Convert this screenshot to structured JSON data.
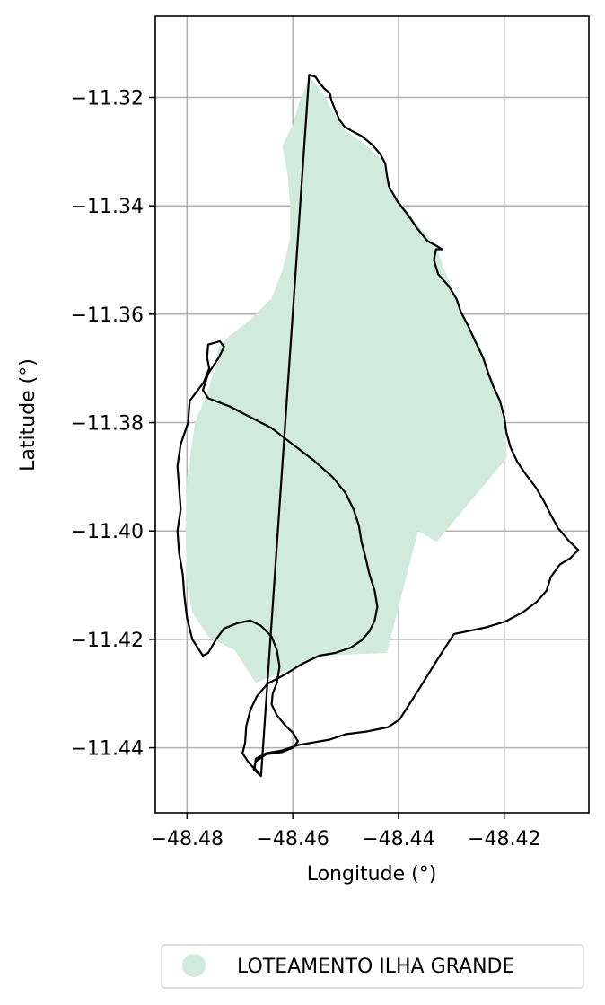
{
  "chart_data": {
    "type": "map",
    "xlabel": "Longitude (°)",
    "ylabel": "Latitude (°)",
    "xlim": [
      -48.486,
      -48.404
    ],
    "ylim": [
      -11.452,
      -11.305
    ],
    "grid": true,
    "x_ticks": [
      -48.48,
      -48.46,
      -48.44,
      -48.42
    ],
    "x_tick_labels": [
      "−48.48",
      "−48.46",
      "−48.44",
      "−48.42"
    ],
    "y_ticks": [
      -11.32,
      -11.34,
      -11.36,
      -11.38,
      -11.4,
      -11.42,
      -11.44
    ],
    "y_tick_labels": [
      "−11.32",
      "−11.34",
      "−11.36",
      "−11.38",
      "−11.40",
      "−11.42",
      "−11.44"
    ],
    "legend": {
      "placement": "bottom-center",
      "entries": [
        {
          "label": "LOTEAMENTO ILHA GRANDE",
          "color": "#d0ebde",
          "marker": "circle"
        }
      ]
    },
    "colors": {
      "fill": "#d0ebde",
      "boundary": "#000000",
      "grid": "#b0b0b0"
    },
    "island_outline": [
      [
        -48.4569,
        -11.3158
      ],
      [
        -48.4557,
        -11.3162
      ],
      [
        -48.4551,
        -11.3171
      ],
      [
        -48.454,
        -11.3184
      ],
      [
        -48.453,
        -11.3192
      ],
      [
        -48.4527,
        -11.3205
      ],
      [
        -48.4519,
        -11.3225
      ],
      [
        -48.4512,
        -11.3241
      ],
      [
        -48.4502,
        -11.3254
      ],
      [
        -48.4488,
        -11.3262
      ],
      [
        -48.447,
        -11.3271
      ],
      [
        -48.445,
        -11.3287
      ],
      [
        -48.4434,
        -11.3305
      ],
      [
        -48.4425,
        -11.3322
      ],
      [
        -48.4422,
        -11.3343
      ],
      [
        -48.4418,
        -11.3364
      ],
      [
        -48.4402,
        -11.3392
      ],
      [
        -48.4382,
        -11.3417
      ],
      [
        -48.4366,
        -11.344
      ],
      [
        -48.4345,
        -11.3465
      ],
      [
        -48.4328,
        -11.3474
      ],
      [
        -48.4318,
        -11.348
      ],
      [
        -48.4329,
        -11.348
      ],
      [
        -48.4333,
        -11.35
      ],
      [
        -48.4325,
        -11.3526
      ],
      [
        -48.4305,
        -11.3548
      ],
      [
        -48.429,
        -11.3572
      ],
      [
        -48.4282,
        -11.3596
      ],
      [
        -48.4268,
        -11.3622
      ],
      [
        -48.4255,
        -11.365
      ],
      [
        -48.424,
        -11.368
      ],
      [
        -48.423,
        -11.371
      ],
      [
        -48.422,
        -11.3735
      ],
      [
        -48.4208,
        -11.376
      ],
      [
        -48.42,
        -11.379
      ],
      [
        -48.4196,
        -11.3818
      ],
      [
        -48.4188,
        -11.3846
      ],
      [
        -48.4175,
        -11.3873
      ],
      [
        -48.4158,
        -11.3897
      ],
      [
        -48.414,
        -11.392
      ],
      [
        -48.4125,
        -11.3945
      ],
      [
        -48.4112,
        -11.397
      ],
      [
        -48.4098,
        -11.3995
      ],
      [
        -48.4078,
        -11.4018
      ],
      [
        -48.406,
        -11.4035
      ],
      [
        -48.4075,
        -11.405
      ],
      [
        -48.4095,
        -11.4062
      ],
      [
        -48.4112,
        -11.4085
      ],
      [
        -48.412,
        -11.411
      ],
      [
        -48.4138,
        -11.413
      ],
      [
        -48.4165,
        -11.415
      ],
      [
        -48.4198,
        -11.4167
      ],
      [
        -48.4235,
        -11.4178
      ],
      [
        -48.427,
        -11.4185
      ],
      [
        -48.4295,
        -11.419
      ],
      [
        -48.4325,
        -11.4235
      ],
      [
        -48.436,
        -11.429
      ],
      [
        -48.4398,
        -11.4348
      ],
      [
        -48.442,
        -11.4362
      ],
      [
        -48.446,
        -11.437
      ],
      [
        -48.45,
        -11.4375
      ],
      [
        -48.453,
        -11.4385
      ],
      [
        -48.456,
        -11.439
      ],
      [
        -48.459,
        -11.4395
      ],
      [
        -48.462,
        -11.4405
      ],
      [
        -48.465,
        -11.441
      ],
      [
        -48.467,
        -11.442
      ],
      [
        -48.4672,
        -11.4438
      ],
      [
        -48.466,
        -11.4452
      ],
      [
        -48.467,
        -11.4442
      ],
      [
        -48.4685,
        -11.4425
      ],
      [
        -48.4695,
        -11.441
      ],
      [
        -48.469,
        -11.439
      ],
      [
        -48.4688,
        -11.436
      ],
      [
        -48.468,
        -11.433
      ],
      [
        -48.4668,
        -11.4305
      ],
      [
        -48.4648,
        -11.4282
      ],
      [
        -48.4615,
        -11.4265
      ],
      [
        -48.4582,
        -11.4245
      ],
      [
        -48.455,
        -11.423
      ],
      [
        -48.452,
        -11.4225
      ],
      [
        -48.449,
        -11.4215
      ],
      [
        -48.447,
        -11.4202
      ],
      [
        -48.4455,
        -11.4185
      ],
      [
        -48.4445,
        -11.4165
      ],
      [
        -48.444,
        -11.414
      ],
      [
        -48.4445,
        -11.411
      ],
      [
        -48.4455,
        -11.408
      ],
      [
        -48.4462,
        -11.405
      ],
      [
        -48.447,
        -11.402
      ],
      [
        -48.4475,
        -11.399
      ],
      [
        -48.4485,
        -11.396
      ],
      [
        -48.45,
        -11.393
      ],
      [
        -48.4525,
        -11.39
      ],
      [
        -48.456,
        -11.387
      ],
      [
        -48.46,
        -11.384
      ],
      [
        -48.464,
        -11.381
      ],
      [
        -48.468,
        -11.379
      ],
      [
        -48.472,
        -11.377
      ],
      [
        -48.476,
        -11.3755
      ],
      [
        -48.477,
        -11.374
      ],
      [
        -48.476,
        -11.371
      ],
      [
        -48.474,
        -11.368
      ],
      [
        -48.473,
        -11.366
      ],
      [
        -48.4738,
        -11.365
      ],
      [
        -48.476,
        -11.3656
      ],
      [
        -48.4762,
        -11.368
      ],
      [
        -48.4758,
        -11.37
      ],
      [
        -48.4768,
        -11.3725
      ],
      [
        -48.4795,
        -11.376
      ],
      [
        -48.4798,
        -11.38
      ],
      [
        -48.4812,
        -11.384
      ],
      [
        -48.4818,
        -11.388
      ],
      [
        -48.4815,
        -11.392
      ],
      [
        -48.4812,
        -11.396
      ],
      [
        -48.4818,
        -11.4
      ],
      [
        -48.4815,
        -11.404
      ],
      [
        -48.4808,
        -11.408
      ],
      [
        -48.4805,
        -11.412
      ],
      [
        -48.48,
        -11.416
      ],
      [
        -48.479,
        -11.42
      ],
      [
        -48.477,
        -11.423
      ],
      [
        -48.476,
        -11.4225
      ],
      [
        -48.4745,
        -11.42
      ],
      [
        -48.473,
        -11.418
      ],
      [
        -48.4705,
        -11.417
      ],
      [
        -48.468,
        -11.4165
      ],
      [
        -48.466,
        -11.4175
      ],
      [
        -48.464,
        -11.4195
      ],
      [
        -48.463,
        -11.422
      ],
      [
        -48.4625,
        -11.425
      ],
      [
        -48.463,
        -11.428
      ],
      [
        -48.4638,
        -11.43
      ],
      [
        -48.464,
        -11.432
      ],
      [
        -48.463,
        -11.434
      ],
      [
        -48.4615,
        -11.4358
      ],
      [
        -48.46,
        -11.4372
      ],
      [
        -48.459,
        -11.4388
      ],
      [
        -48.46,
        -11.44
      ],
      [
        -48.462,
        -11.4408
      ],
      [
        -48.465,
        -11.4412
      ],
      [
        -48.467,
        -11.4425
      ],
      [
        -48.4674,
        -11.444
      ],
      [
        -48.466,
        -11.4452
      ]
    ],
    "fill_polygon": [
      [
        -48.4568,
        -11.3162
      ],
      [
        -48.4546,
        -11.3188
      ],
      [
        -48.4522,
        -11.323
      ],
      [
        -48.45,
        -11.3262
      ],
      [
        -48.4465,
        -11.3285
      ],
      [
        -48.4431,
        -11.3315
      ],
      [
        -48.442,
        -11.336
      ],
      [
        -48.4392,
        -11.34
      ],
      [
        -48.436,
        -11.344
      ],
      [
        -48.433,
        -11.347
      ],
      [
        -48.432,
        -11.35
      ],
      [
        -48.43,
        -11.355
      ],
      [
        -48.428,
        -11.36
      ],
      [
        -48.425,
        -11.365
      ],
      [
        -48.423,
        -11.37
      ],
      [
        -48.421,
        -11.375
      ],
      [
        -48.4198,
        -11.38
      ],
      [
        -48.4195,
        -11.3865
      ],
      [
        -48.4328,
        -11.402
      ],
      [
        -48.4363,
        -11.4
      ],
      [
        -48.4422,
        -11.4225
      ],
      [
        -48.4542,
        -11.423
      ],
      [
        -48.467,
        -11.428
      ],
      [
        -48.471,
        -11.422
      ],
      [
        -48.476,
        -11.4195
      ],
      [
        -48.479,
        -11.415
      ],
      [
        -48.48,
        -11.41
      ],
      [
        -48.4803,
        -11.4
      ],
      [
        -48.48,
        -11.39
      ],
      [
        -48.4785,
        -11.38
      ],
      [
        -48.476,
        -11.374
      ],
      [
        -48.4745,
        -11.369
      ],
      [
        -48.474,
        -11.366
      ],
      [
        -48.472,
        -11.364
      ],
      [
        -48.468,
        -11.361
      ],
      [
        -48.464,
        -11.357
      ],
      [
        -48.462,
        -11.352
      ],
      [
        -48.4605,
        -11.346
      ],
      [
        -48.4605,
        -11.34
      ],
      [
        -48.461,
        -11.334
      ],
      [
        -48.462,
        -11.329
      ],
      [
        -48.46,
        -11.325
      ],
      [
        -48.4588,
        -11.321
      ],
      [
        -48.4578,
        -11.3185
      ]
    ]
  }
}
